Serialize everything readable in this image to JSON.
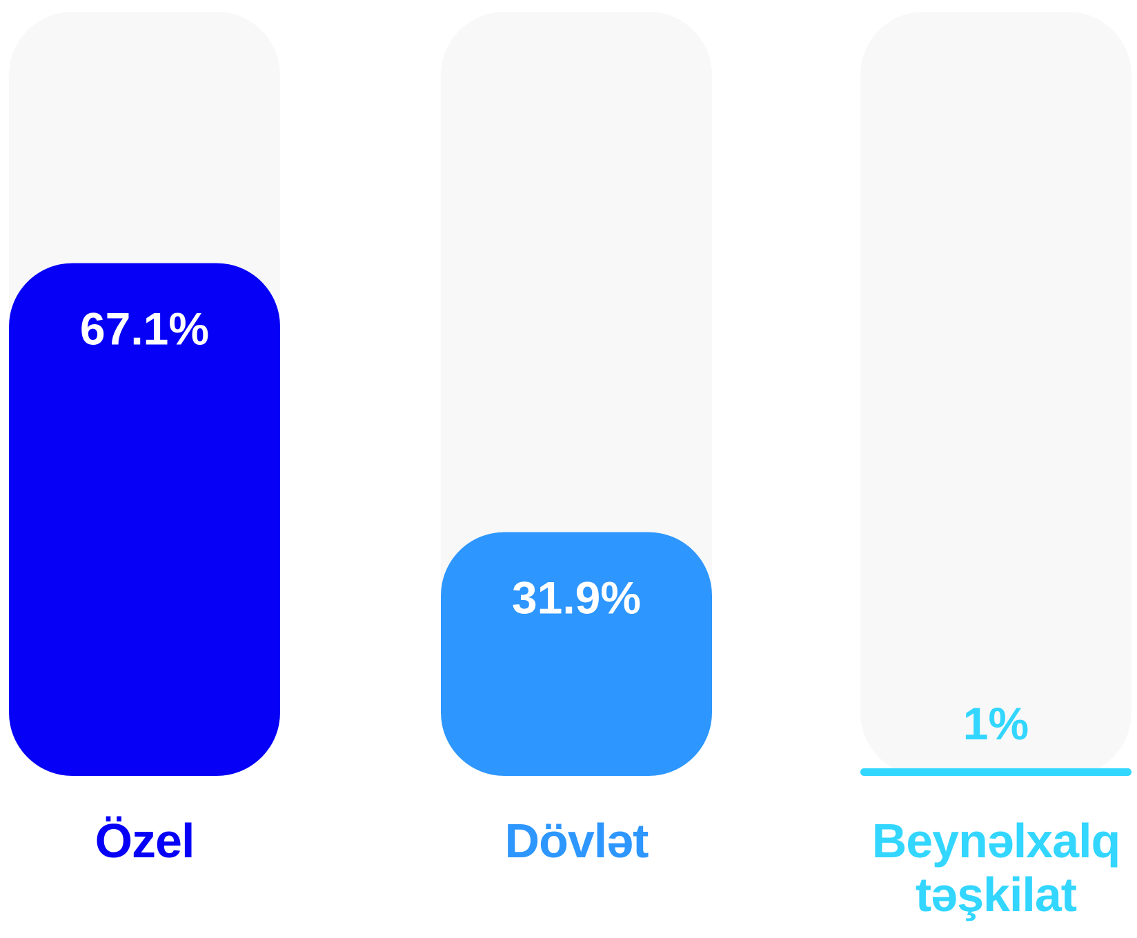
{
  "chart_data": {
    "type": "bar",
    "categories": [
      "Özel",
      "Dövlət",
      "Beynəlxalq təşkilat"
    ],
    "values": [
      67.1,
      31.9,
      1
    ],
    "value_labels": [
      "67.1%",
      "31.9%",
      "1%"
    ],
    "colors": [
      "#0600f7",
      "#2d96ff",
      "#32d6ff"
    ],
    "ylim": [
      0,
      100
    ]
  }
}
